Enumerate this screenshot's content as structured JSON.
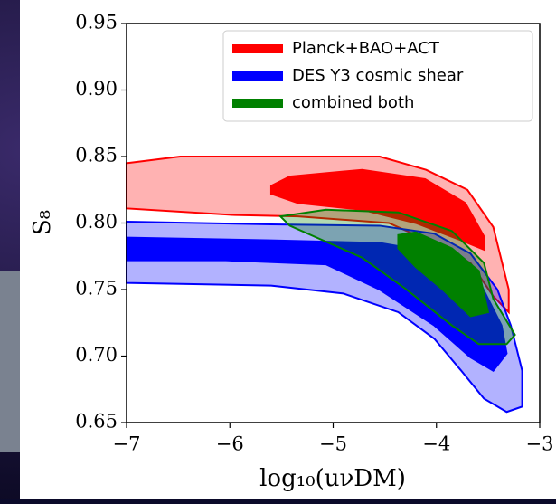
{
  "chart_data": {
    "type": "contour",
    "xlabel": "log₁₀(uνDM)",
    "ylabel": "S₈",
    "xlim": [
      -7,
      -3
    ],
    "ylim": [
      0.65,
      0.95
    ],
    "xticks": [
      {
        "value": -7,
        "label": "−7"
      },
      {
        "value": -6,
        "label": "−6"
      },
      {
        "value": -5,
        "label": "−5"
      },
      {
        "value": -4,
        "label": "−4"
      },
      {
        "value": -3,
        "label": "−3"
      }
    ],
    "yticks": [
      {
        "value": 0.65,
        "label": "0.65"
      },
      {
        "value": 0.7,
        "label": "0.70"
      },
      {
        "value": 0.75,
        "label": "0.75"
      },
      {
        "value": 0.8,
        "label": "0.80"
      },
      {
        "value": 0.85,
        "label": "0.85"
      },
      {
        "value": 0.9,
        "label": "0.90"
      },
      {
        "value": 0.95,
        "label": "0.95"
      }
    ],
    "legend": "upper right",
    "series": [
      {
        "name": "Planck+BAO+ACT",
        "color": "#ff0000",
        "contours": [
          {
            "x": [
              -7,
              -6.48,
              -4.55,
              -4.1,
              -3.7,
              -3.45,
              -3.3,
              -3.3,
              -3.45,
              -3.67,
              -4.0,
              -4.46,
              -5.34,
              -5.95,
              -7
            ],
            "y": [
              0.845,
              0.85,
              0.85,
              0.84,
              0.825,
              0.797,
              0.75,
              0.733,
              0.745,
              0.77,
              0.784,
              0.8,
              0.805,
              0.806,
              0.811
            ]
          },
          {
            "x": [
              -5.6,
              -5.42,
              -4.72,
              -4.11,
              -3.72,
              -3.54,
              -3.54,
              -3.76,
              -4.2,
              -4.72,
              -5.34,
              -5.6
            ],
            "y": [
              0.828,
              0.835,
              0.84,
              0.833,
              0.815,
              0.79,
              0.78,
              0.787,
              0.8,
              0.81,
              0.815,
              0.822
            ]
          }
        ]
      },
      {
        "name": "DES Y3 cosmic shear",
        "color": "#0000ff",
        "contours": [
          {
            "x": [
              -7,
              -5.6,
              -4.55,
              -4.02,
              -3.67,
              -3.41,
              -3.28,
              -3.17,
              -3.17,
              -3.32,
              -3.54,
              -3.76,
              -4.02,
              -4.37,
              -4.9,
              -5.6,
              -7
            ],
            "y": [
              0.801,
              0.799,
              0.798,
              0.792,
              0.777,
              0.75,
              0.723,
              0.689,
              0.662,
              0.658,
              0.668,
              0.689,
              0.713,
              0.733,
              0.747,
              0.753,
              0.755
            ]
          },
          {
            "x": [
              -7,
              -5.6,
              -4.55,
              -3.94,
              -3.59,
              -3.37,
              -3.32,
              -3.45,
              -3.67,
              -4.02,
              -4.55,
              -5.07,
              -6.04,
              -7
            ],
            "y": [
              0.789,
              0.787,
              0.785,
              0.777,
              0.757,
              0.723,
              0.702,
              0.689,
              0.699,
              0.723,
              0.75,
              0.769,
              0.772,
              0.772
            ]
          }
        ]
      },
      {
        "name": "combined both",
        "color": "#008000",
        "contours": [
          {
            "x": [
              -5.51,
              -5.07,
              -4.37,
              -3.85,
              -3.54,
              -3.45,
              -3.24,
              -3.32,
              -3.59,
              -3.85,
              -4.29,
              -4.72,
              -5.42
            ],
            "y": [
              0.805,
              0.81,
              0.808,
              0.794,
              0.77,
              0.743,
              0.716,
              0.709,
              0.709,
              0.723,
              0.75,
              0.774,
              0.798
            ]
          },
          {
            "x": [
              -4.37,
              -4.2,
              -3.85,
              -3.59,
              -3.5,
              -3.67,
              -3.94,
              -4.2,
              -4.37
            ],
            "y": [
              0.791,
              0.793,
              0.781,
              0.764,
              0.733,
              0.73,
              0.75,
              0.767,
              0.781
            ]
          }
        ]
      }
    ]
  }
}
